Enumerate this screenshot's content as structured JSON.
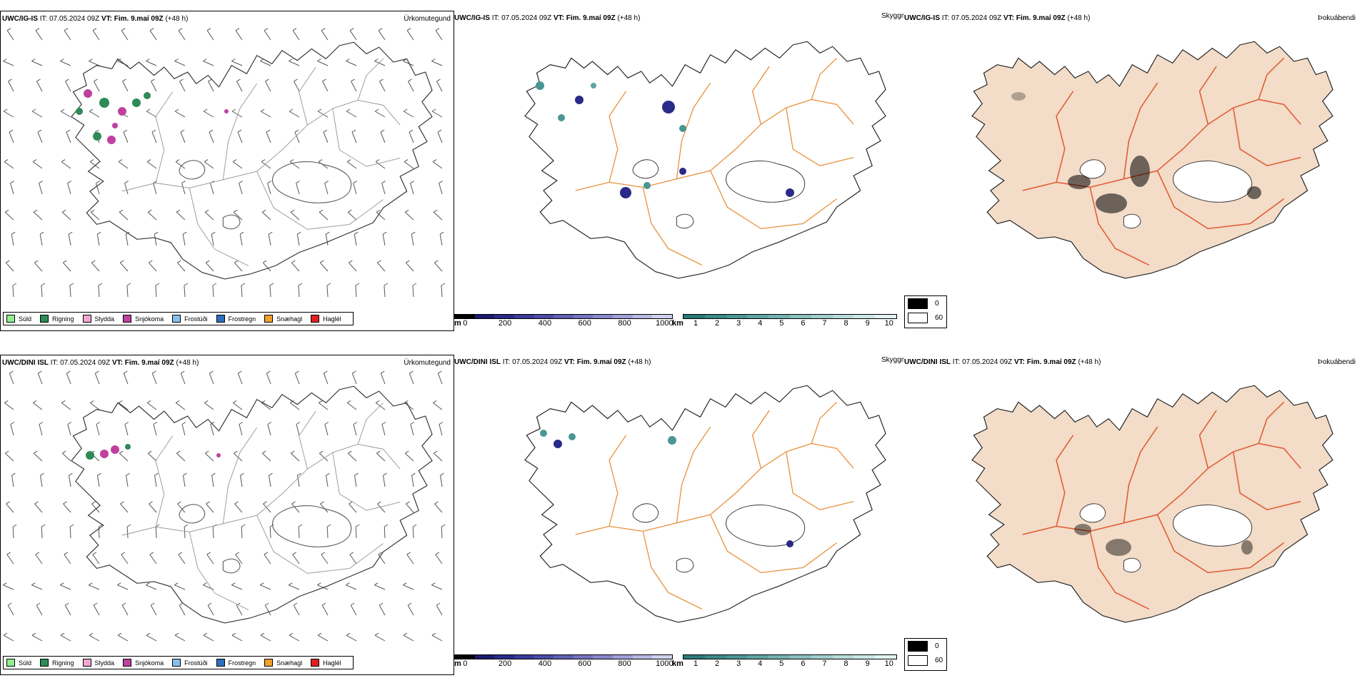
{
  "rows": [
    {
      "model": "UWC/IG-IS",
      "it_label": "IT:",
      "it_value": "07.05.2024 09Z",
      "vt_label": "VT:",
      "vt_value": "Fim. 9.maí 09Z",
      "lead": "(+48 h)"
    },
    {
      "model": "UWC/DINI ISL",
      "it_label": "IT:",
      "it_value": "07.05.2024 09Z",
      "vt_label": "VT:",
      "vt_value": "Fim. 9.maí 09Z",
      "lead": "(+48 h)"
    }
  ],
  "panel_titles": {
    "precip_type": "Úrkomutegund",
    "cloud": "Skyggni",
    "fog": "Þokuábendi"
  },
  "precip_legend": [
    {
      "label": "Súld",
      "color": "#90ee90"
    },
    {
      "label": "Rigning",
      "color": "#2e8b57"
    },
    {
      "label": "Slydda",
      "color": "#f4a6d0"
    },
    {
      "label": "Snjókoma",
      "color": "#c040a0"
    },
    {
      "label": "Frostúði",
      "color": "#87bff0"
    },
    {
      "label": "Frostregn",
      "color": "#2f6fbf"
    },
    {
      "label": "Snæhagl",
      "color": "#f0a030"
    },
    {
      "label": "Haglél",
      "color": "#e02020"
    }
  ],
  "colorbar_m": {
    "unit": "m",
    "ticks": [
      "0",
      "200",
      "400",
      "600",
      "800",
      "1000"
    ],
    "colors": [
      "#000000",
      "#1a1a6e",
      "#2a2a8a",
      "#3b3b9c",
      "#4c4ca8",
      "#6060b4",
      "#7474c0",
      "#8888cc",
      "#a0a0d8",
      "#b8b8e4",
      "#d0d0ee"
    ]
  },
  "colorbar_km": {
    "unit": "km",
    "ticks": [
      "1",
      "2",
      "3",
      "4",
      "5",
      "6",
      "7",
      "8",
      "9",
      "10"
    ],
    "colors": [
      "#2a7a78",
      "#3a8a86",
      "#4a9694",
      "#5ea4a2",
      "#74b2b0",
      "#8ac0be",
      "#a0cecc",
      "#b6dcda",
      "#cce8e6",
      "#e2f4f2"
    ]
  },
  "fog_legend": [
    {
      "label": "0",
      "color": "#000000"
    },
    {
      "label": "60",
      "color": "#ffffff"
    }
  ],
  "colors": {
    "road": "#e8903a",
    "fog_land": "#f3dcc8",
    "fog_road": "#e05a30",
    "river": "#7890e8"
  }
}
